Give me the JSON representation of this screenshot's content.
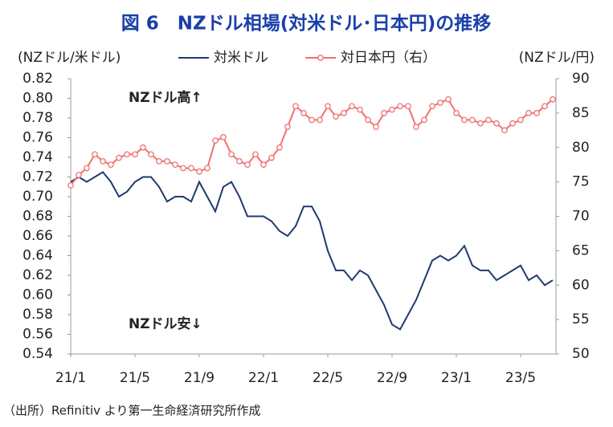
{
  "chart_data": {
    "type": "line",
    "title": "図 6　NZドル相場(対米ドル･日本円)の推移",
    "y_label": "(NZドル/米ドル)",
    "y2_label": "(NZドル/円)",
    "annotations": [
      "NZドル高↑",
      "NZドル安↓"
    ],
    "source": "（出所）Refinitiv より第一生命経済研究所作成",
    "x": [
      0,
      0.5,
      1,
      1.5,
      2,
      2.5,
      3,
      3.5,
      4,
      4.5,
      5,
      5.5,
      6,
      6.5,
      7,
      7.5,
      8,
      8.5,
      9,
      9.5,
      10,
      10.5,
      11,
      11.5,
      12,
      12.5,
      13,
      13.5,
      14,
      14.5,
      15,
      15.5,
      16,
      16.5,
      17,
      17.5,
      18,
      18.5,
      19,
      19.5,
      20,
      20.5,
      21,
      21.5,
      22,
      22.5,
      23,
      23.5,
      24,
      24.5,
      25,
      25.5,
      26,
      26.5,
      27,
      27.5,
      28,
      28.5,
      29,
      29.5,
      30
    ],
    "xlim": [
      0,
      30.2
    ],
    "xticks": [
      {
        "value": 0,
        "label": "21/1"
      },
      {
        "value": 4,
        "label": "21/5"
      },
      {
        "value": 8,
        "label": "21/9"
      },
      {
        "value": 12,
        "label": "22/1"
      },
      {
        "value": 16,
        "label": "22/5"
      },
      {
        "value": 20,
        "label": "22/9"
      },
      {
        "value": 24,
        "label": "23/1"
      },
      {
        "value": 28,
        "label": "23/5"
      }
    ],
    "ylim": [
      0.54,
      0.82
    ],
    "yticks": [
      0.54,
      0.56,
      0.58,
      {
        "value": 0.6,
        "label": "0.60"
      },
      0.62,
      0.64,
      0.66,
      0.68,
      {
        "value": 0.7,
        "label": "0.70"
      },
      0.72,
      0.74,
      0.76,
      0.78,
      {
        "value": 0.8,
        "label": "0.80"
      },
      0.82
    ],
    "y2lim": [
      50,
      90
    ],
    "y2ticks": [
      50,
      55,
      60,
      65,
      70,
      75,
      80,
      85,
      90
    ],
    "series": [
      {
        "name": "対米ドル",
        "color": "#1f3a6e",
        "values": [
          0.715,
          0.72,
          0.715,
          0.72,
          0.725,
          0.715,
          0.7,
          0.705,
          0.715,
          0.72,
          0.72,
          0.71,
          0.695,
          0.7,
          0.7,
          0.695,
          0.715,
          0.7,
          0.685,
          0.71,
          0.715,
          0.7,
          0.68,
          0.68,
          0.68,
          0.675,
          0.665,
          0.66,
          0.67,
          0.69,
          0.69,
          0.675,
          0.645,
          0.625,
          0.625,
          0.615,
          0.625,
          0.62,
          0.605,
          0.59,
          0.57,
          0.565,
          0.58,
          0.595,
          0.615,
          0.635,
          0.64,
          0.635,
          0.64,
          0.65,
          0.63,
          0.625,
          0.625,
          0.615,
          0.62,
          0.625,
          0.63,
          0.615,
          0.62,
          0.61,
          0.615
        ]
      },
      {
        "name": "対日本円（右）",
        "color": "#f07070",
        "axis": "y2",
        "values": [
          74.5,
          76,
          77,
          79,
          78,
          77.5,
          78.5,
          79,
          79,
          80,
          79,
          78,
          78,
          77.5,
          77,
          77,
          76.5,
          77,
          81,
          81.5,
          79,
          78,
          77.5,
          79,
          77.5,
          78.5,
          80,
          83,
          86,
          85,
          84,
          84,
          86,
          84.5,
          85,
          86,
          85.5,
          84,
          83,
          85,
          85.5,
          86,
          86,
          83,
          84,
          86,
          86.5,
          87,
          85,
          84,
          84,
          83.5,
          84,
          83.5,
          82.5,
          83.5,
          84,
          85,
          85,
          86,
          87
        ]
      }
    ]
  }
}
